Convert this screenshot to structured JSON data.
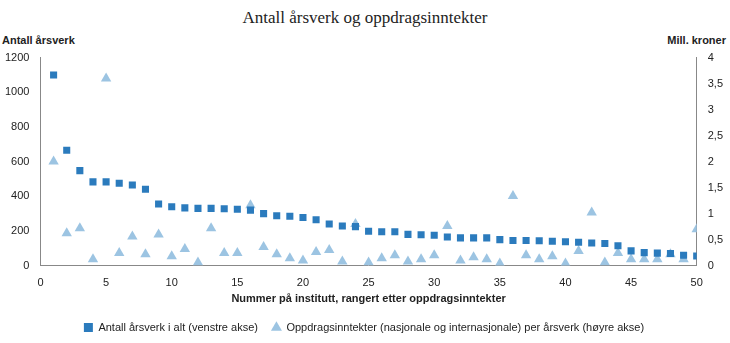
{
  "chart_data": {
    "type": "scatter",
    "title": "Antall årsverk og oppdragsinntekter",
    "y_label": "Antall årsverk",
    "y2_label": "Mill. kroner",
    "x_label": "Nummer på institutt, rangert etter oppdragsinntekter",
    "x": [
      1,
      2,
      3,
      4,
      5,
      6,
      7,
      8,
      9,
      10,
      11,
      12,
      13,
      14,
      15,
      16,
      17,
      18,
      19,
      20,
      21,
      22,
      23,
      24,
      25,
      26,
      27,
      28,
      29,
      30,
      31,
      32,
      33,
      34,
      35,
      36,
      37,
      38,
      39,
      40,
      41,
      42,
      43,
      44,
      45,
      46,
      47,
      48,
      49,
      50
    ],
    "series": [
      {
        "name": "Antall årsverk i alt (venstre akse)",
        "color": "#2b7bbd",
        "marker": "square",
        "values": [
          1100,
          665,
          548,
          483,
          483,
          475,
          465,
          440,
          355,
          340,
          333,
          330,
          330,
          328,
          325,
          320,
          300,
          288,
          285,
          278,
          265,
          240,
          228,
          225,
          198,
          195,
          195,
          180,
          178,
          175,
          165,
          160,
          160,
          160,
          150,
          145,
          145,
          143,
          140,
          138,
          135,
          130,
          128,
          115,
          85,
          75,
          72,
          70,
          60,
          55
        ]
      },
      {
        "name": "Oppdragsinntekter (nasjonale og internasjonale) per årsverk (høyre akse)",
        "color": "#9cc4e2",
        "marker": "triangle",
        "axis": "y2",
        "values": [
          2.0,
          0.62,
          0.72,
          0.12,
          3.6,
          0.24,
          0.56,
          0.22,
          0.6,
          0.18,
          0.32,
          0.06,
          0.72,
          0.24,
          0.24,
          1.16,
          0.36,
          0.22,
          0.14,
          0.1,
          0.26,
          0.3,
          0.08,
          0.8,
          0.06,
          0.14,
          0.2,
          0.08,
          0.12,
          0.2,
          0.76,
          0.1,
          0.16,
          0.12,
          0.04,
          1.34,
          0.2,
          0.12,
          0.18,
          0.04,
          0.28,
          1.02,
          0.06,
          0.24,
          0.12,
          0.12,
          0.12,
          0.22,
          0.12,
          0.7
        ]
      }
    ],
    "xlim": [
      0,
      50
    ],
    "xticks": [
      0,
      5,
      10,
      15,
      20,
      25,
      30,
      35,
      40,
      45,
      50
    ],
    "ylim": [
      0,
      1200
    ],
    "yticks": [
      0,
      200,
      400,
      600,
      800,
      1000,
      1200
    ],
    "y2lim": [
      0,
      4
    ],
    "y2ticks": [
      0,
      {
        "value": 0.5,
        "label": "0,5"
      },
      1,
      {
        "value": 1.5,
        "label": "1,5"
      },
      2,
      {
        "value": 2.5,
        "label": "2,5"
      },
      3,
      {
        "value": 3.5,
        "label": "3,5"
      },
      4
    ],
    "grid": false,
    "legend": "bottom"
  }
}
